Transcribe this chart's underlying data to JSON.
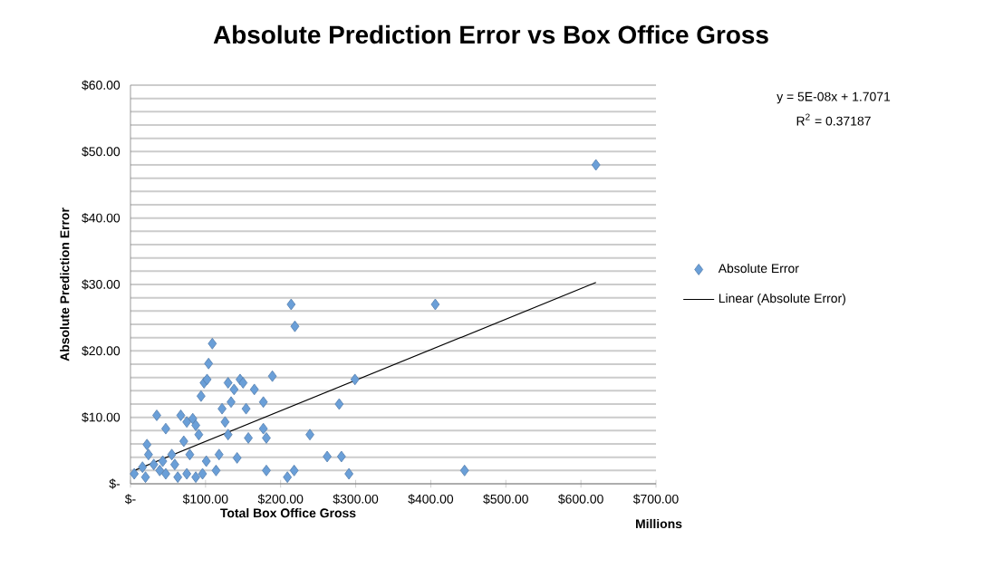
{
  "chart_data": {
    "type": "scatter",
    "title": "Absolute Prediction Error vs Box Office Gross",
    "xlabel": "Total Box Office Gross",
    "ylabel": "Absolute Prediction Error",
    "annotations": [
      "y = 5E-08x + 1.7071",
      "R$^{2}$ = 0.37187",
      "Millions"
    ],
    "series": [
      {
        "name": "Absolute Error",
        "color": "#6a9fd8",
        "marker": "diamond",
        "x": [
          5,
          20,
          24,
          22,
          35,
          47,
          31,
          39,
          47,
          55,
          59,
          67,
          75,
          71,
          79,
          83,
          87,
          91,
          94,
          98,
          104,
          109,
          102,
          101,
          96,
          87,
          75,
          63,
          114,
          118,
          122,
          126,
          130,
          134,
          138,
          130,
          142,
          146,
          150,
          154,
          157,
          165,
          177,
          177,
          181,
          181,
          189,
          214,
          219,
          209,
          218,
          239,
          262,
          278,
          281,
          291,
          299,
          16,
          43,
          406,
          445,
          620
        ],
        "values": [
          1.5,
          1,
          4.4,
          5.9,
          10.3,
          8.3,
          2.9,
          2,
          1.5,
          4.4,
          2.9,
          10.3,
          9.3,
          6.4,
          4.4,
          9.8,
          8.8,
          7.4,
          13.2,
          15.2,
          18.1,
          21.1,
          15.7,
          3.4,
          1.5,
          1,
          1.5,
          1,
          2,
          4.4,
          11.3,
          9.3,
          15.2,
          12.3,
          14.2,
          7.4,
          3.9,
          15.7,
          15.2,
          11.3,
          6.9,
          14.2,
          12.3,
          8.3,
          6.9,
          2,
          16.2,
          27,
          23.7,
          1,
          2,
          7.4,
          4.1,
          12,
          4.1,
          1.5,
          15.7,
          2.5,
          3.4,
          27,
          2,
          48
        ]
      },
      {
        "name": "Linear (Absolute Error)",
        "type": "line",
        "color": "#000000",
        "marker": "none",
        "line_style": "solid",
        "x": [
          5,
          620
        ],
        "values": [
          2.0,
          30.3
        ]
      }
    ],
    "xlim": [
      0,
      700
    ],
    "ylim": [
      0,
      60
    ],
    "xticks": [
      {
        "value": 0,
        "label": "$-"
      },
      {
        "value": 100,
        "label": "$100.00"
      },
      {
        "value": 200,
        "label": "$200.00"
      },
      {
        "value": 300,
        "label": "$300.00"
      },
      {
        "value": 400,
        "label": "$400.00"
      },
      {
        "value": 500,
        "label": "$500.00"
      },
      {
        "value": 600,
        "label": "$600.00"
      },
      {
        "value": 700,
        "label": "$700.00"
      }
    ],
    "yticks": [
      {
        "value": 0,
        "label": "$-"
      },
      {
        "value": 2,
        "label": null
      },
      {
        "value": 4,
        "label": null
      },
      {
        "value": 6,
        "label": null
      },
      {
        "value": 8,
        "label": null
      },
      {
        "value": 10,
        "label": "$10.00"
      },
      {
        "value": 12,
        "label": null
      },
      {
        "value": 14,
        "label": null
      },
      {
        "value": 16,
        "label": null
      },
      {
        "value": 18,
        "label": null
      },
      {
        "value": 20,
        "label": "$20.00"
      },
      {
        "value": 22,
        "label": null
      },
      {
        "value": 24,
        "label": null
      },
      {
        "value": 26,
        "label": null
      },
      {
        "value": 28,
        "label": null
      },
      {
        "value": 30,
        "label": "$30.00"
      },
      {
        "value": 32,
        "label": null
      },
      {
        "value": 34,
        "label": null
      },
      {
        "value": 36,
        "label": null
      },
      {
        "value": 38,
        "label": null
      },
      {
        "value": 40,
        "label": "$40.00"
      },
      {
        "value": 42,
        "label": null
      },
      {
        "value": 44,
        "label": null
      },
      {
        "value": 46,
        "label": null
      },
      {
        "value": 48,
        "label": null
      },
      {
        "value": 50,
        "label": "$50.00"
      },
      {
        "value": 52,
        "label": null
      },
      {
        "value": 54,
        "label": null
      },
      {
        "value": 56,
        "label": null
      },
      {
        "value": 58,
        "label": null
      },
      {
        "value": 60,
        "label": "$60.00"
      }
    ],
    "grid": "y",
    "legend": "right"
  }
}
